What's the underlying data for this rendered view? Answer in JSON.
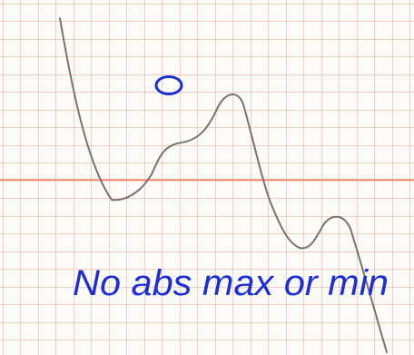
{
  "annotation": "No abs max or min"
}
